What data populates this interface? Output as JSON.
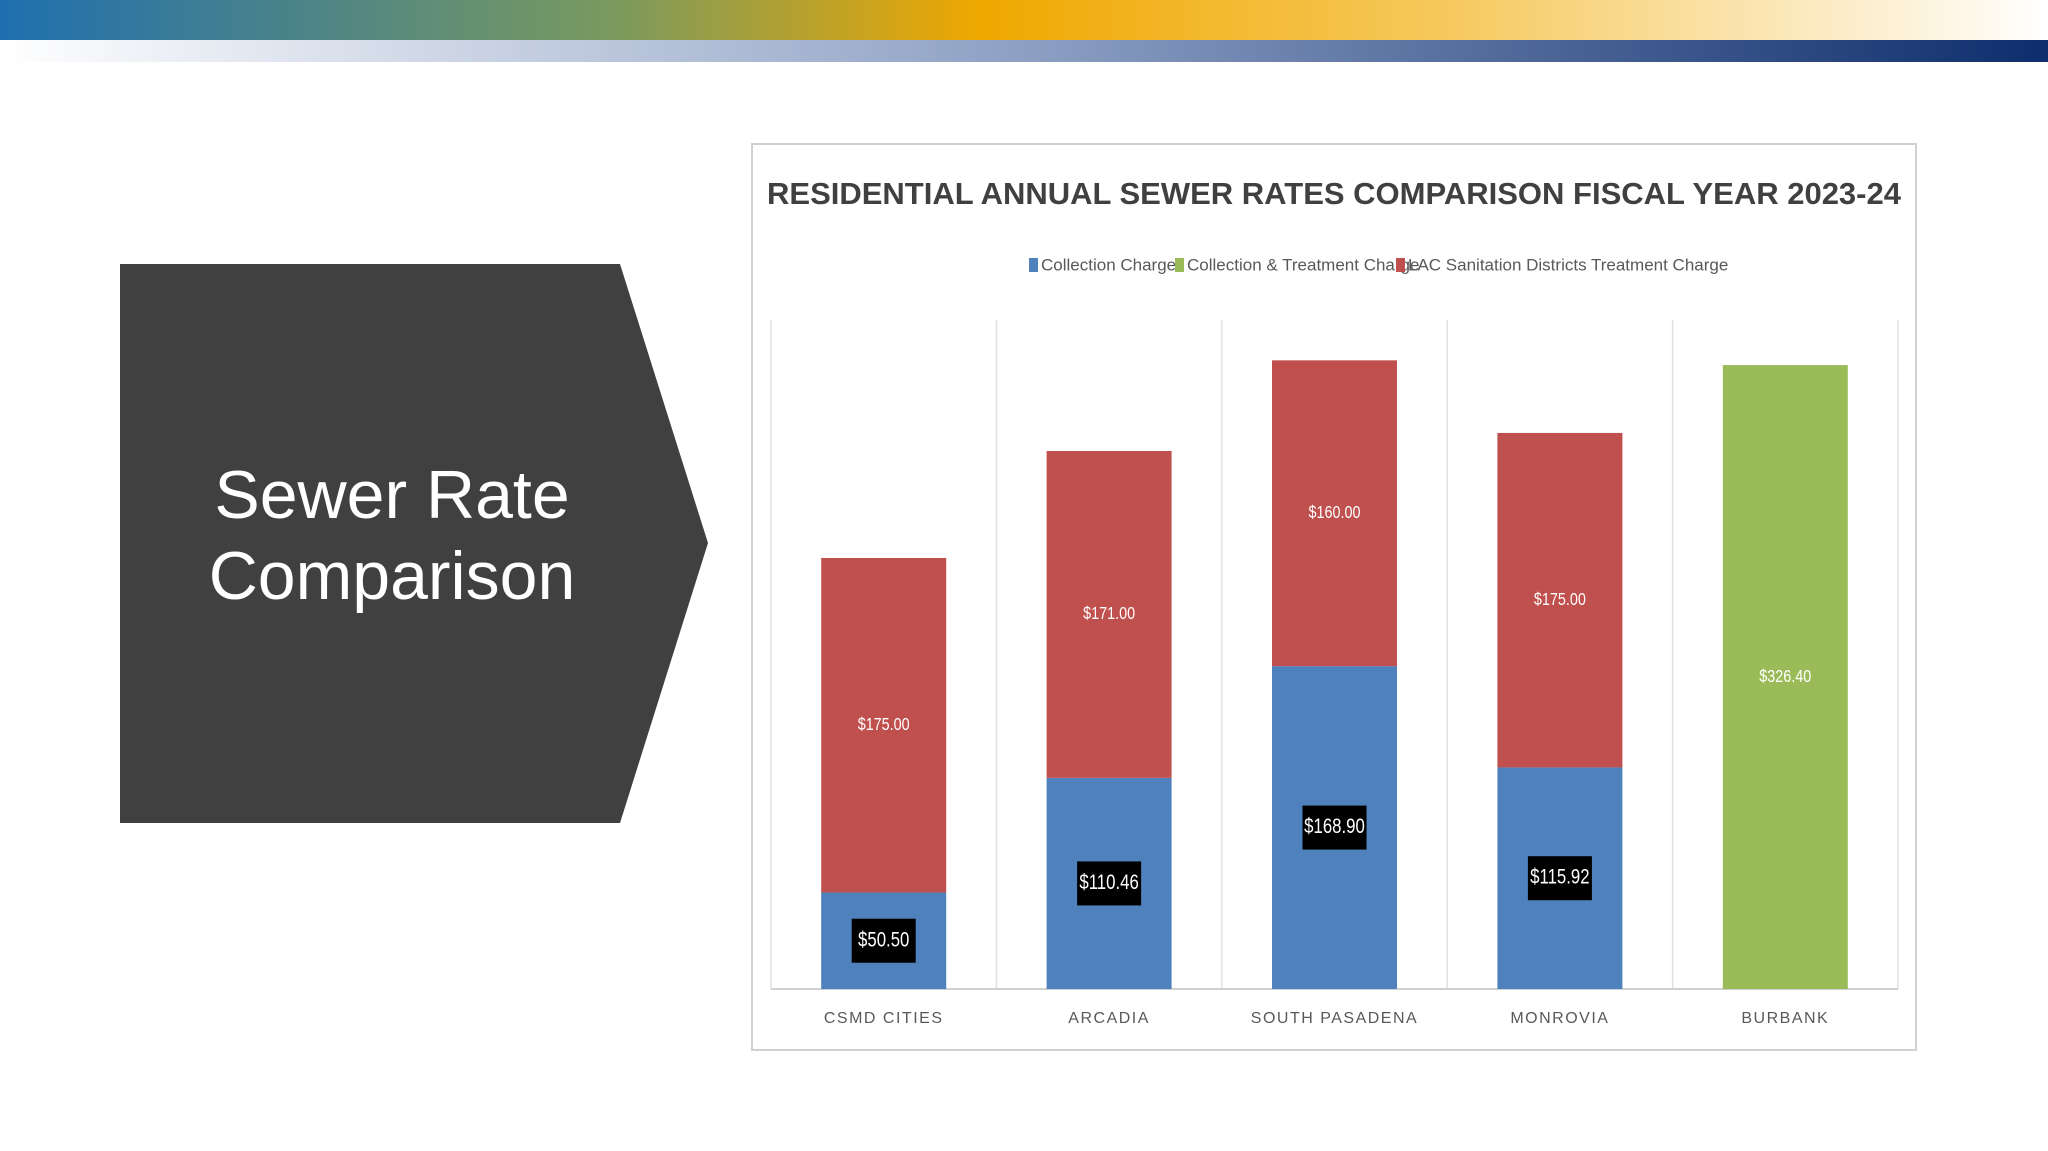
{
  "slide": {
    "title_lines": [
      "Sewer Rate",
      "Comparison"
    ]
  },
  "chart_data": {
    "type": "stacked-bar",
    "title": "RESIDENTIAL ANNUAL SEWER RATES COMPARISON FISCAL YEAR 2023-24",
    "categories": [
      "CSMD CITIES",
      "ARCADIA",
      "SOUTH PASADENA",
      "MONROVIA",
      "BURBANK"
    ],
    "series": [
      {
        "name": "Collection Charge",
        "color": "#4f81bd",
        "values": [
          50.5,
          110.46,
          168.9,
          115.92,
          null
        ],
        "value_labels": [
          "$50.50",
          "$110.46",
          "$168.90",
          "$115.92",
          null
        ]
      },
      {
        "name": "Collection & Treatment Charge",
        "color": "#9bbb59",
        "values": [
          null,
          null,
          null,
          null,
          326.4
        ],
        "value_labels": [
          null,
          null,
          null,
          null,
          "$326.40"
        ]
      },
      {
        "name": "LAC Sanitation Districts Treatment Charge",
        "color": "#c0504d",
        "values": [
          175.0,
          171.0,
          160.0,
          175.0,
          null
        ],
        "value_labels": [
          "$175.00",
          "$171.00",
          "$160.00",
          "$175.00",
          null
        ]
      }
    ],
    "ylim": [
      0,
      350
    ],
    "legend": "top"
  }
}
